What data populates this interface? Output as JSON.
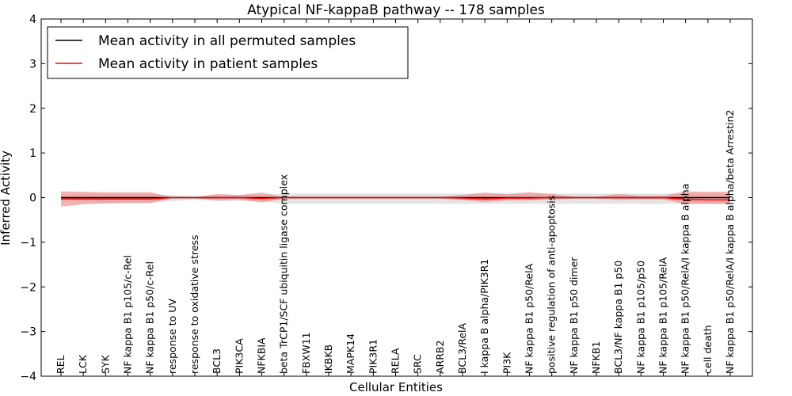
{
  "chart_data": {
    "type": "line",
    "title": "Atypical NF-kappaB pathway -- 178 samples",
    "xlabel": "Cellular Entities",
    "ylabel": "Inferred Activity",
    "ylim": [
      -4,
      4
    ],
    "yticks": [
      "−4",
      "−3",
      "−2",
      "−1",
      "0",
      "1",
      "2",
      "3",
      "4"
    ],
    "grid": false,
    "legend_position": "top-left",
    "categories": [
      "REL",
      "LCK",
      "SYK",
      "NF kappa B1 p105/c-Rel",
      "NF kappa B1 p50/c-Rel",
      "response to UV",
      "response to oxidative stress",
      "BCL3",
      "PIK3CA",
      "NFKBIA",
      "beta TrCP1/SCF ubiquitin ligase complex",
      "FBXW11",
      "IKBKB",
      "MAPK14",
      "PIK3R1",
      "RELA",
      "SRC",
      "ARRB2",
      "BCL3/RelA",
      "I kappa B alpha/PIK3R1",
      "PI3K",
      "NF kappa B1 p50/RelA",
      "positive regulation of anti-apoptosis",
      "NF kappa B1 p50 dimer",
      "NFKB1",
      "BCL3/NF kappa B1 p50",
      "NF kappa B1 p105/p50",
      "NF kappa B1 p105/RelA",
      "NF kappa B1 p50/RelA/I kappa B alpha",
      "cell death",
      "NF kappa B1 p50/RelA/I kappa B alpha/beta Arrestin2"
    ],
    "series": [
      {
        "name": "Mean activity in all permuted samples",
        "color": "#000000",
        "band_color": "#d9d9d9",
        "values": [
          0,
          0,
          0,
          0,
          0,
          0,
          0,
          0,
          0,
          0,
          0,
          0,
          0,
          0,
          0,
          0,
          0,
          0,
          0,
          0,
          0,
          0,
          0,
          0,
          0,
          0,
          0,
          0,
          0,
          0,
          0
        ],
        "band_upper": [
          0.05,
          0.08,
          0.08,
          0.08,
          0.08,
          0.05,
          0.03,
          0.06,
          0.06,
          0.06,
          0.09,
          0.09,
          0.09,
          0.09,
          0.09,
          0.09,
          0.09,
          0.09,
          0.09,
          0.09,
          0.09,
          0.09,
          0.09,
          0.09,
          0.09,
          0.09,
          0.09,
          0.09,
          0.09,
          0.09,
          0.09
        ],
        "band_lower": [
          -0.05,
          -0.1,
          -0.12,
          -0.12,
          -0.12,
          -0.08,
          -0.05,
          -0.08,
          -0.08,
          -0.08,
          -0.14,
          -0.14,
          -0.14,
          -0.14,
          -0.14,
          -0.14,
          -0.14,
          -0.14,
          -0.14,
          -0.14,
          -0.14,
          -0.14,
          -0.14,
          -0.14,
          -0.14,
          -0.14,
          -0.14,
          -0.14,
          -0.14,
          -0.14,
          -0.14
        ]
      },
      {
        "name": "Mean activity in patient samples",
        "color": "#ff0000",
        "band_color": "#f08080",
        "values": [
          -0.03,
          -0.03,
          -0.03,
          -0.03,
          -0.03,
          0.0,
          0.0,
          0.0,
          0.0,
          -0.02,
          0.0,
          0.0,
          0.0,
          0.0,
          0.0,
          0.0,
          0.0,
          0.0,
          -0.01,
          -0.03,
          -0.01,
          -0.01,
          0.0,
          0.0,
          0.0,
          0.0,
          0.0,
          0.0,
          -0.04,
          -0.05,
          -0.05
        ],
        "band_upper": [
          0.14,
          0.13,
          0.12,
          0.12,
          0.12,
          0.01,
          0.01,
          0.08,
          0.06,
          0.11,
          0.02,
          0.02,
          0.02,
          0.02,
          0.02,
          0.02,
          0.02,
          0.02,
          0.06,
          0.11,
          0.08,
          0.12,
          0.08,
          0.02,
          0.02,
          0.08,
          0.04,
          0.04,
          0.14,
          0.13,
          0.13
        ],
        "band_lower": [
          -0.2,
          -0.15,
          -0.13,
          -0.12,
          -0.12,
          -0.01,
          -0.01,
          -0.06,
          -0.04,
          -0.11,
          -0.02,
          -0.02,
          -0.02,
          -0.02,
          -0.02,
          -0.02,
          -0.02,
          -0.02,
          -0.05,
          -0.1,
          -0.06,
          -0.06,
          -0.04,
          -0.02,
          -0.02,
          -0.05,
          -0.04,
          -0.04,
          -0.14,
          -0.14,
          -0.14
        ]
      }
    ]
  }
}
